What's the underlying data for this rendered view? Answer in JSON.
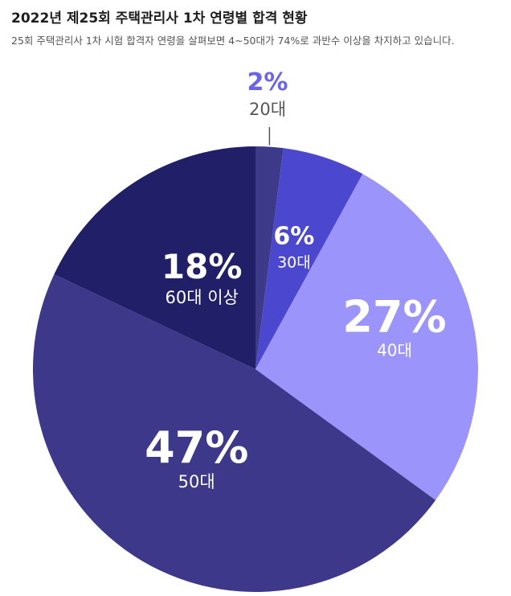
{
  "header": {
    "title": "2022년 제25회 주택관리사 1차 연령별 합격 현황",
    "subtitle": "25회 주택관리사 1차 시험 합격자 연령을 살펴보면 4~50대가 74%로 과반수 이상을 차지하고 있습니다."
  },
  "chart_data": {
    "type": "pie",
    "title": "2022년 제25회 주택관리사 1차 연령별 합격 현황",
    "start": "top",
    "direction": "clockwise",
    "slices": [
      {
        "label": "20대",
        "value": 2,
        "pct_label": "2%",
        "color": "#3d3a8a"
      },
      {
        "label": "30대",
        "value": 6,
        "pct_label": "6%",
        "color": "#4c47cf"
      },
      {
        "label": "40대",
        "value": 27,
        "pct_label": "27%",
        "color": "#9b95fb"
      },
      {
        "label": "50대",
        "value": 47,
        "pct_label": "47%",
        "color": "#3d3889"
      },
      {
        "label": "60대 이상",
        "value": 18,
        "pct_label": "18%",
        "color": "#221f69"
      }
    ],
    "outside_label_color": "#6b64e6",
    "outside_sub_color": "#555555"
  }
}
